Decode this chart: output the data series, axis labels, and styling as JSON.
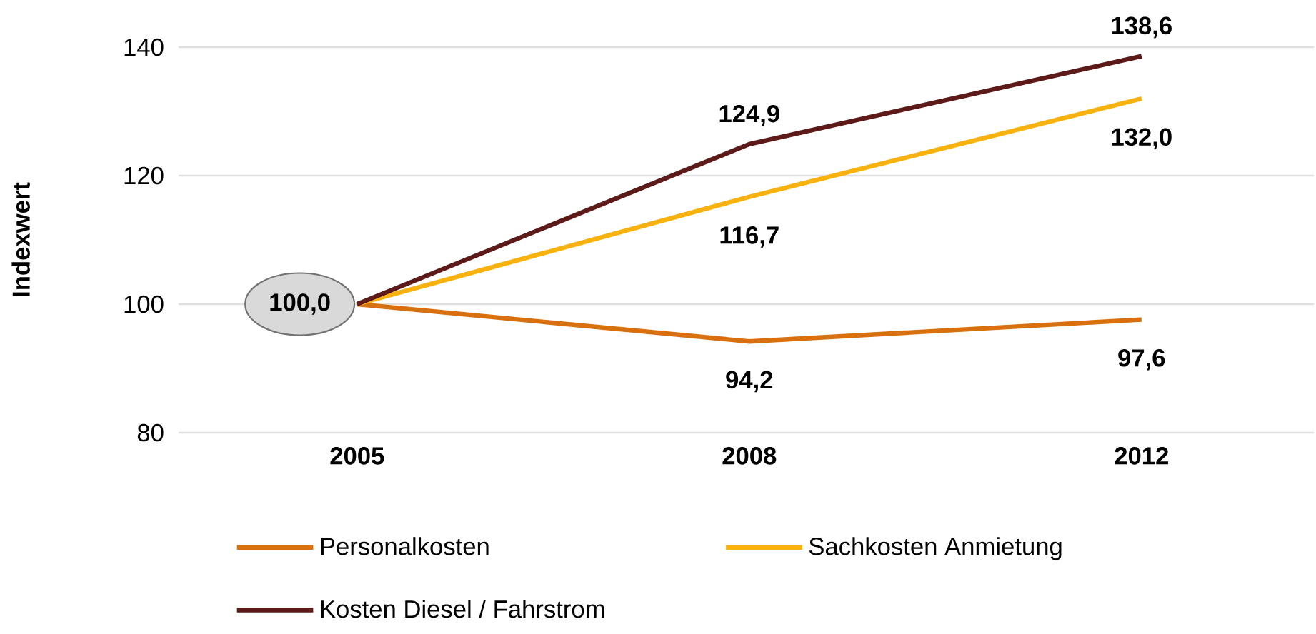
{
  "chart_data": {
    "type": "line",
    "ylabel": "Indexwert",
    "categories": [
      "2005",
      "2008",
      "2012"
    ],
    "ylim": [
      80,
      140
    ],
    "yticks": [
      80,
      100,
      120,
      140
    ],
    "grid": "y",
    "legend": "bottom",
    "marker": "none",
    "line_style": "solid",
    "series": [
      {
        "name": "Personalkosten",
        "color": "#d9700f",
        "values": [
          100.0,
          94.2,
          97.6
        ],
        "value_labels": [
          "100,0",
          "94,2",
          "97,6"
        ]
      },
      {
        "name": "Sachkosten Anmietung",
        "color": "#f7b20f",
        "values": [
          100.0,
          116.7,
          132.0
        ],
        "value_labels": [
          null,
          "116,7",
          "132,0"
        ]
      },
      {
        "name": "Kosten Diesel / Fahrstrom",
        "color": "#5c1a18",
        "values": [
          100.0,
          124.9,
          138.6
        ],
        "value_labels": [
          null,
          "124,9",
          "138,6"
        ]
      }
    ]
  }
}
